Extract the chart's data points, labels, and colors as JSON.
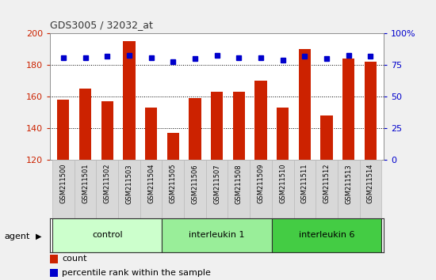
{
  "title": "GDS3005 / 32032_at",
  "samples": [
    "GSM211500",
    "GSM211501",
    "GSM211502",
    "GSM211503",
    "GSM211504",
    "GSM211505",
    "GSM211506",
    "GSM211507",
    "GSM211508",
    "GSM211509",
    "GSM211510",
    "GSM211511",
    "GSM211512",
    "GSM211513",
    "GSM211514"
  ],
  "counts": [
    158,
    165,
    157,
    195,
    153,
    137,
    159,
    163,
    163,
    170,
    153,
    190,
    148,
    184,
    182
  ],
  "percentiles": [
    81,
    81,
    82,
    83,
    81,
    78,
    80,
    83,
    81,
    81,
    79,
    82,
    80,
    83,
    82
  ],
  "bar_color": "#cc2200",
  "dot_color": "#0000cc",
  "groups": [
    {
      "label": "control",
      "start": 0,
      "end": 4,
      "color": "#ccffcc"
    },
    {
      "label": "interleukin 1",
      "start": 5,
      "end": 9,
      "color": "#99ee99"
    },
    {
      "label": "interleukin 6",
      "start": 10,
      "end": 14,
      "color": "#44cc44"
    }
  ],
  "ylim_left": [
    120,
    200
  ],
  "ylim_right": [
    0,
    100
  ],
  "yticks_left": [
    120,
    140,
    160,
    180,
    200
  ],
  "yticks_right": [
    0,
    25,
    50,
    75,
    100
  ],
  "grid_values": [
    140,
    160,
    180
  ],
  "bg_color": "#f0f0f0",
  "plot_bg": "#ffffff",
  "title_color": "#333333",
  "left_axis_color": "#cc2200",
  "right_axis_color": "#0000cc",
  "sample_bg": "#d8d8d8",
  "agent_label": "agent"
}
